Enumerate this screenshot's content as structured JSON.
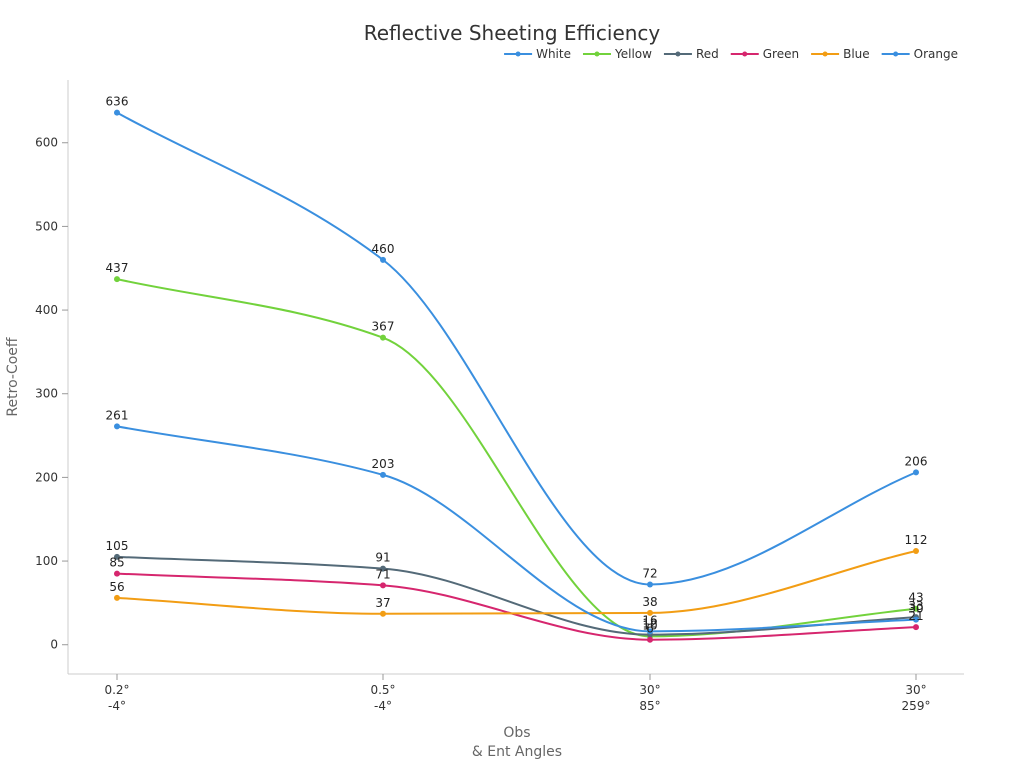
{
  "chart_data": {
    "type": "line",
    "title": "Reflective Sheeting Efficiency",
    "xlabel": [
      "Obs",
      "& Ent Angles"
    ],
    "ylabel": "Retro-Coeff",
    "categories": [
      [
        "0.2°",
        "-4°"
      ],
      [
        "0.5°",
        "-4°"
      ],
      [
        "30°",
        "85°"
      ],
      [
        "30°",
        "259°"
      ]
    ],
    "ylim": [
      -35,
      675
    ],
    "yticks": [
      0,
      100,
      200,
      300,
      400,
      500,
      600
    ],
    "grid": false,
    "legend_position": "top-right",
    "series": [
      {
        "name": "White",
        "color": "#3a8fdf",
        "values": [
          636,
          460,
          72,
          206
        ]
      },
      {
        "name": "Yellow",
        "color": "#72d23c",
        "values": [
          437,
          367,
          10,
          43
        ]
      },
      {
        "name": "Red",
        "color": "#546a78",
        "values": [
          105,
          91,
          12,
          33
        ]
      },
      {
        "name": "Green",
        "color": "#d6266e",
        "values": [
          85,
          71,
          6,
          21
        ]
      },
      {
        "name": "Blue",
        "color": "#f29d14",
        "values": [
          56,
          37,
          38,
          112
        ]
      },
      {
        "name": "Orange",
        "color": "#3a8fdf",
        "values": [
          261,
          203,
          16,
          30
        ]
      }
    ]
  }
}
